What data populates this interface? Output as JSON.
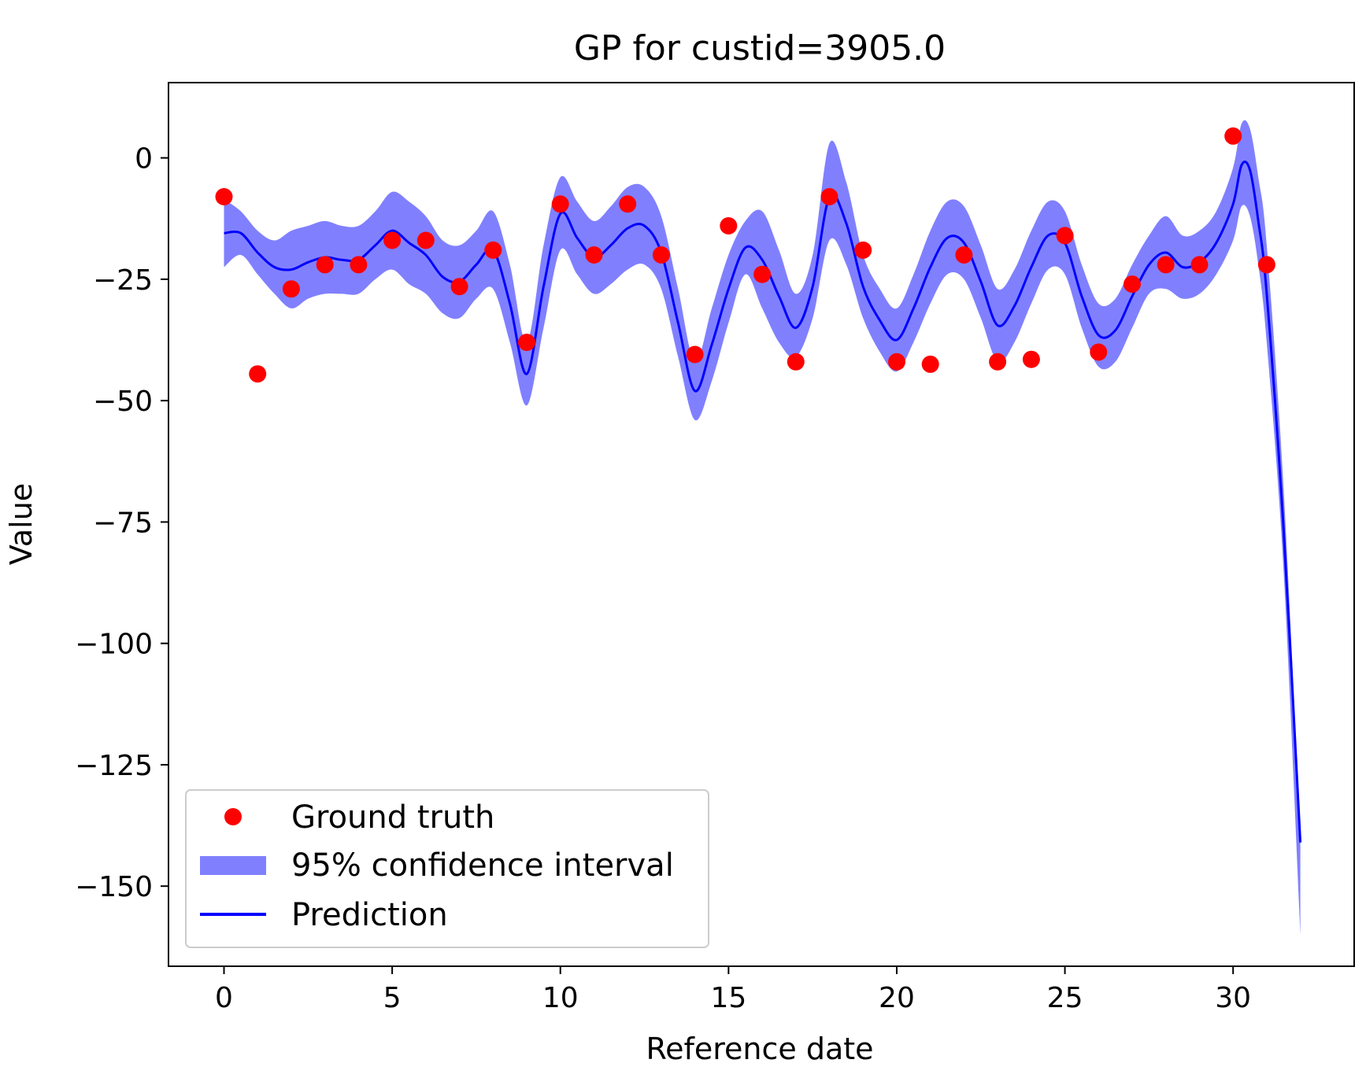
{
  "chart_data": {
    "type": "line",
    "title": "GP for custid=3905.0",
    "xlabel": "Reference date",
    "ylabel": "Value",
    "xlim": [
      -1.65,
      33.6
    ],
    "ylim": [
      -166.5,
      15.5
    ],
    "xticks": [
      0,
      5,
      10,
      15,
      20,
      25,
      30
    ],
    "yticks": [
      0,
      -25,
      -50,
      -75,
      -100,
      -125,
      -150
    ],
    "xtick_labels": [
      "0",
      "5",
      "10",
      "15",
      "20",
      "25",
      "30"
    ],
    "ytick_labels": [
      "0",
      "−25",
      "−50",
      "−75",
      "−100",
      "−125",
      "−150"
    ],
    "grid": false,
    "legend_position": "lower-left",
    "colors": {
      "ground_truth": "#ff0000",
      "confidence": "#8080ff",
      "prediction": "#0000ff"
    },
    "series": [
      {
        "name": "Ground truth",
        "kind": "scatter",
        "x": [
          0,
          1,
          2,
          3,
          4,
          5,
          6,
          7,
          8,
          9,
          10,
          11,
          12,
          13,
          14,
          15,
          16,
          17,
          18,
          19,
          20,
          21,
          22,
          23,
          24,
          25,
          26,
          27,
          28,
          29,
          30,
          31
        ],
        "y": [
          -8,
          -44.5,
          -27,
          -22,
          -22,
          -17,
          -17,
          -26.5,
          -19,
          -38,
          -9.5,
          -20,
          -9.5,
          -20,
          -40.5,
          -14,
          -24,
          -42,
          -8,
          -19,
          -42,
          -42.5,
          -20,
          -42,
          -41.5,
          -16,
          -40,
          -26,
          -22,
          -22,
          4.5,
          -22
        ]
      },
      {
        "name": "95% confidence interval",
        "kind": "band",
        "x": [
          0,
          0.5,
          1,
          1.5,
          2,
          2.5,
          3,
          3.5,
          4,
          4.5,
          5,
          5.5,
          6,
          6.5,
          7,
          7.5,
          8,
          8.5,
          9,
          9.5,
          10,
          10.5,
          11,
          11.5,
          12,
          12.5,
          13,
          13.5,
          14,
          14.5,
          15,
          15.5,
          16,
          16.5,
          17,
          17.5,
          18,
          18.5,
          19,
          19.5,
          20,
          20.5,
          21,
          21.5,
          22,
          22.5,
          23,
          23.5,
          24,
          24.5,
          25,
          25.5,
          26,
          26.5,
          27,
          27.5,
          28,
          28.5,
          29,
          29.5,
          30,
          30.25,
          30.5,
          30.75,
          31,
          31.5,
          32
        ],
        "lower": [
          -22.5,
          -20,
          -24,
          -28,
          -31,
          -29,
          -28,
          -28,
          -28,
          -25,
          -23,
          -26,
          -28,
          -32,
          -33,
          -29,
          -27,
          -38,
          -51,
          -35,
          -19,
          -24,
          -28,
          -26,
          -23,
          -22,
          -27,
          -41,
          -54,
          -46,
          -34,
          -24,
          -31,
          -38,
          -41,
          -33,
          -17,
          -22,
          -33,
          -40,
          -44,
          -38,
          -30,
          -24,
          -25,
          -33,
          -42,
          -38,
          -30,
          -23,
          -24,
          -35,
          -43,
          -42,
          -35,
          -28,
          -27,
          -29,
          -28,
          -24,
          -17,
          -10,
          -12,
          -22,
          -38,
          -85,
          -160
        ],
        "upper": [
          -8.5,
          -11,
          -15,
          -17,
          -15,
          -14,
          -13,
          -14,
          -14,
          -11,
          -7,
          -9,
          -12,
          -17,
          -18,
          -15,
          -11,
          -22,
          -38,
          -18,
          -4,
          -9,
          -13,
          -10,
          -6,
          -6,
          -12,
          -27,
          -42,
          -31,
          -20,
          -13,
          -11,
          -19,
          -28,
          -20,
          3,
          -5,
          -20,
          -27,
          -31,
          -24,
          -15,
          -9,
          -10,
          -18,
          -27,
          -23,
          -15,
          -9,
          -11,
          -22,
          -30,
          -29,
          -22,
          -16,
          -12,
          -16,
          -15,
          -11,
          -2,
          7,
          6,
          -4,
          -18,
          -68,
          -140
        ]
      },
      {
        "name": "Prediction",
        "kind": "line",
        "x": [
          0,
          0.5,
          1,
          1.5,
          2,
          2.5,
          3,
          3.5,
          4,
          4.5,
          5,
          5.5,
          6,
          6.5,
          7,
          7.5,
          8,
          8.5,
          9,
          9.5,
          10,
          10.5,
          11,
          11.5,
          12,
          12.5,
          13,
          13.5,
          14,
          14.5,
          15,
          15.5,
          16,
          16.5,
          17,
          17.5,
          18,
          18.5,
          19,
          19.5,
          20,
          20.5,
          21,
          21.5,
          22,
          22.5,
          23,
          23.5,
          24,
          24.5,
          25,
          25.5,
          26,
          26.5,
          27,
          27.5,
          28,
          28.5,
          29,
          29.5,
          30,
          30.25,
          30.5,
          30.75,
          31,
          31.5,
          32
        ],
        "y": [
          -15.5,
          -15.5,
          -19.5,
          -22.5,
          -23,
          -21.5,
          -20.5,
          -21,
          -21,
          -18,
          -15,
          -17.5,
          -20,
          -24.5,
          -25.5,
          -22,
          -19,
          -30,
          -44.5,
          -26.5,
          -11.5,
          -16.5,
          -20.5,
          -18,
          -14.5,
          -14,
          -19.5,
          -34,
          -48,
          -38.5,
          -27,
          -18.5,
          -21,
          -28.5,
          -35,
          -26.5,
          -8,
          -13.5,
          -26.5,
          -33.5,
          -37.5,
          -31,
          -22.5,
          -16.5,
          -17.5,
          -25.5,
          -34.5,
          -30.5,
          -22.5,
          -16,
          -17.5,
          -28.5,
          -36.5,
          -35.5,
          -28.5,
          -22,
          -19.5,
          -22.5,
          -21.5,
          -17.5,
          -9.5,
          -1.5,
          -2.5,
          -13,
          -28,
          -76.5,
          -141
        ]
      }
    ]
  }
}
